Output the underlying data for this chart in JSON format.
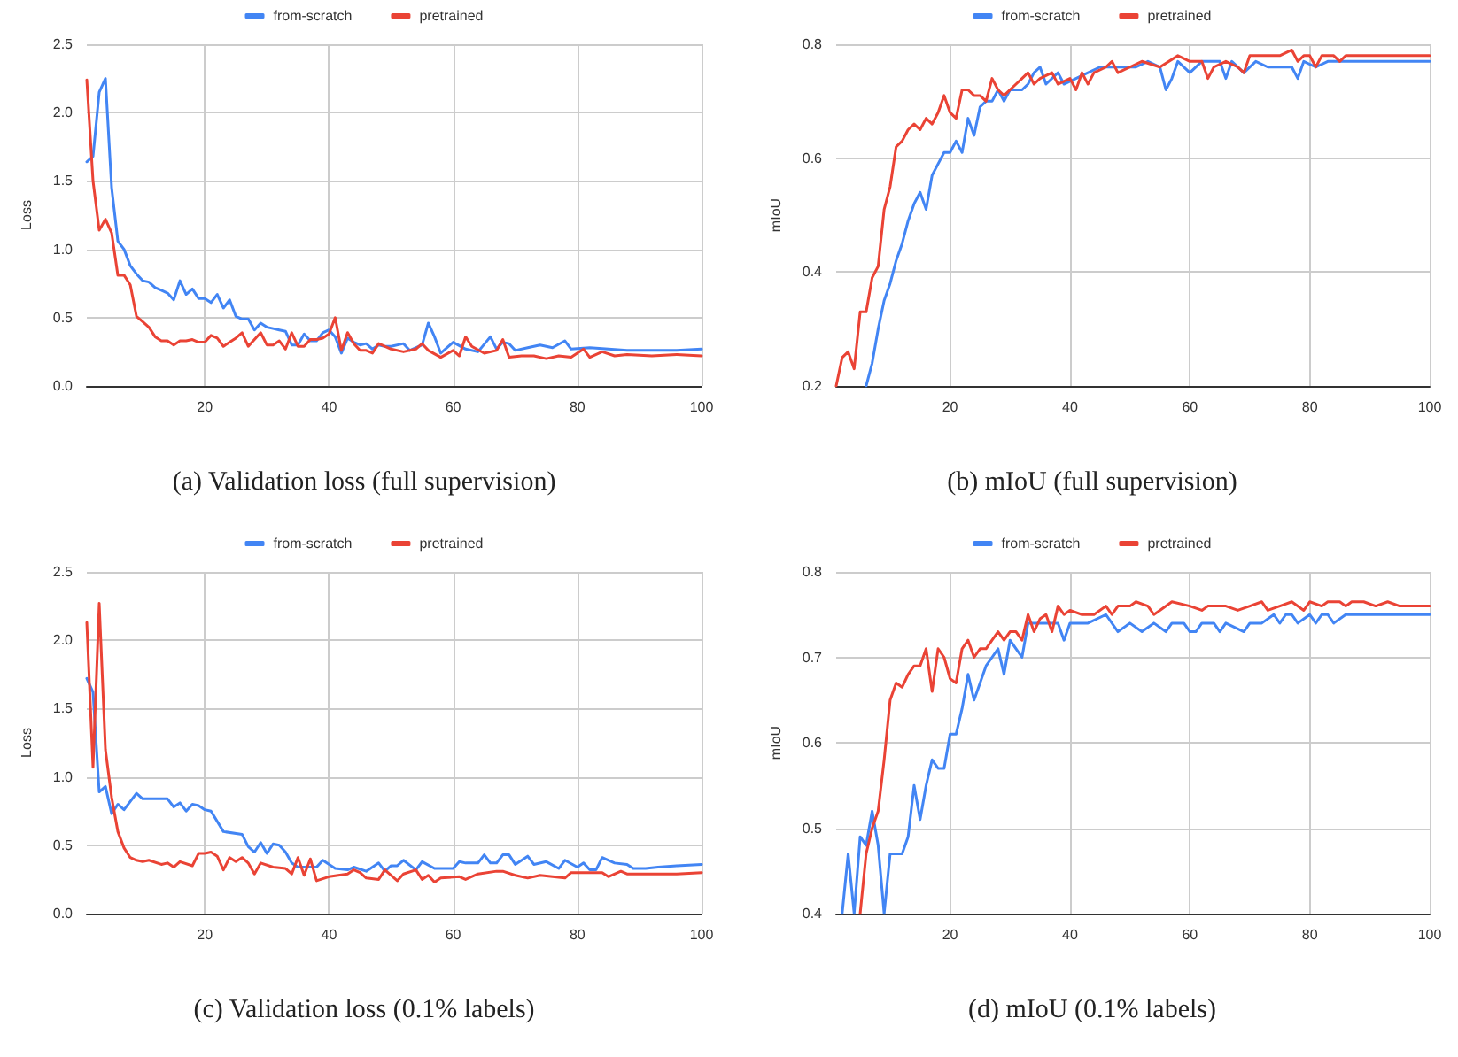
{
  "chart_data": [
    {
      "type": "line",
      "title": "(a) Validation loss (full supervision)",
      "ylabel": "Loss",
      "xlim": [
        1,
        100
      ],
      "xticks": [
        20,
        40,
        60,
        80,
        100
      ],
      "ylim": [
        0,
        2.5
      ],
      "yticks": [
        {
          "value": 0,
          "label": "0.0"
        },
        0.5,
        {
          "value": 1,
          "label": "1.0"
        },
        1.5,
        {
          "value": 2,
          "label": "2.0"
        },
        2.5
      ],
      "grid": true,
      "legend": "top",
      "marker": "none",
      "line_style": "solid",
      "series": [
        {
          "name": "from-scratch",
          "color": "#4285f4",
          "x": [
            1,
            2,
            3,
            4,
            5,
            6,
            7,
            8,
            9,
            10,
            11,
            12,
            13,
            14,
            15,
            16,
            17,
            18,
            19,
            20,
            21,
            22,
            23,
            24,
            25,
            26,
            27,
            28,
            29,
            30,
            31,
            32,
            33,
            34,
            35,
            36,
            37,
            38,
            39,
            40,
            41,
            42,
            43,
            44,
            45,
            46,
            47,
            48,
            49,
            50,
            52,
            53,
            55,
            56,
            57,
            58,
            60,
            62,
            64,
            66,
            67,
            68,
            69,
            70,
            72,
            74,
            76,
            78,
            79,
            82,
            85,
            88,
            92,
            96,
            100
          ],
          "values": [
            1.64,
            1.68,
            2.15,
            2.25,
            1.45,
            1.06,
            1.0,
            0.88,
            0.82,
            0.77,
            0.76,
            0.72,
            0.7,
            0.68,
            0.63,
            0.77,
            0.67,
            0.71,
            0.64,
            0.64,
            0.61,
            0.67,
            0.57,
            0.63,
            0.51,
            0.49,
            0.49,
            0.41,
            0.46,
            0.43,
            0.42,
            0.41,
            0.4,
            0.3,
            0.3,
            0.38,
            0.33,
            0.33,
            0.39,
            0.41,
            0.36,
            0.24,
            0.35,
            0.32,
            0.3,
            0.31,
            0.27,
            0.3,
            0.29,
            0.29,
            0.31,
            0.26,
            0.3,
            0.46,
            0.36,
            0.24,
            0.32,
            0.27,
            0.25,
            0.36,
            0.27,
            0.32,
            0.31,
            0.26,
            0.28,
            0.3,
            0.28,
            0.33,
            0.27,
            0.28,
            0.27,
            0.26,
            0.26,
            0.26,
            0.27
          ]
        },
        {
          "name": "pretrained",
          "color": "#ea4335",
          "x": [
            1,
            2,
            3,
            4,
            5,
            6,
            7,
            8,
            9,
            10,
            11,
            12,
            13,
            14,
            15,
            16,
            17,
            18,
            19,
            20,
            21,
            22,
            23,
            24,
            25,
            26,
            27,
            28,
            29,
            30,
            31,
            32,
            33,
            34,
            35,
            36,
            37,
            38,
            39,
            40,
            41,
            42,
            43,
            44,
            45,
            46,
            47,
            48,
            50,
            52,
            54,
            55,
            56,
            58,
            60,
            61,
            62,
            63,
            65,
            67,
            68,
            69,
            71,
            73,
            75,
            77,
            79,
            81,
            82,
            84,
            86,
            88,
            92,
            96,
            100
          ],
          "values": [
            2.24,
            1.5,
            1.14,
            1.22,
            1.12,
            0.81,
            0.81,
            0.74,
            0.51,
            0.47,
            0.43,
            0.36,
            0.33,
            0.33,
            0.3,
            0.33,
            0.33,
            0.34,
            0.32,
            0.32,
            0.37,
            0.35,
            0.29,
            0.32,
            0.35,
            0.39,
            0.29,
            0.34,
            0.39,
            0.3,
            0.3,
            0.33,
            0.27,
            0.39,
            0.29,
            0.29,
            0.34,
            0.34,
            0.35,
            0.38,
            0.5,
            0.26,
            0.39,
            0.31,
            0.26,
            0.26,
            0.24,
            0.31,
            0.27,
            0.25,
            0.27,
            0.31,
            0.26,
            0.21,
            0.26,
            0.22,
            0.36,
            0.29,
            0.24,
            0.26,
            0.34,
            0.21,
            0.22,
            0.22,
            0.2,
            0.22,
            0.21,
            0.27,
            0.21,
            0.25,
            0.22,
            0.23,
            0.22,
            0.23,
            0.22
          ]
        }
      ]
    },
    {
      "type": "line",
      "title": "(b) mIoU (full supervision)",
      "ylabel": "mIoU",
      "xlim": [
        1,
        100
      ],
      "xticks": [
        20,
        40,
        60,
        80,
        100
      ],
      "ylim": [
        0.2,
        0.8
      ],
      "yticks": [
        0.2,
        0.4,
        0.6,
        0.8
      ],
      "grid": true,
      "legend": "top",
      "marker": "none",
      "line_style": "solid",
      "series": [
        {
          "name": "from-scratch",
          "color": "#4285f4",
          "x": [
            6,
            7,
            8,
            9,
            10,
            11,
            12,
            13,
            14,
            15,
            16,
            17,
            18,
            19,
            20,
            21,
            22,
            23,
            24,
            25,
            26,
            27,
            28,
            29,
            30,
            32,
            33,
            34,
            35,
            36,
            38,
            39,
            41,
            43,
            45,
            47,
            49,
            51,
            53,
            55,
            56,
            57,
            58,
            60,
            62,
            63,
            65,
            66,
            67,
            69,
            71,
            73,
            75,
            77,
            78,
            79,
            81,
            83,
            86,
            90,
            95,
            100
          ],
          "values": [
            0.2,
            0.24,
            0.3,
            0.35,
            0.38,
            0.42,
            0.45,
            0.49,
            0.52,
            0.54,
            0.51,
            0.57,
            0.59,
            0.61,
            0.61,
            0.63,
            0.61,
            0.67,
            0.64,
            0.69,
            0.7,
            0.7,
            0.72,
            0.7,
            0.72,
            0.72,
            0.73,
            0.75,
            0.76,
            0.73,
            0.75,
            0.73,
            0.74,
            0.75,
            0.76,
            0.76,
            0.76,
            0.76,
            0.77,
            0.76,
            0.72,
            0.74,
            0.77,
            0.75,
            0.77,
            0.77,
            0.77,
            0.74,
            0.77,
            0.75,
            0.77,
            0.76,
            0.76,
            0.76,
            0.74,
            0.77,
            0.76,
            0.77,
            0.77,
            0.77,
            0.77,
            0.77
          ]
        },
        {
          "name": "pretrained",
          "color": "#ea4335",
          "x": [
            1,
            2,
            3,
            4,
            5,
            6,
            7,
            8,
            9,
            10,
            11,
            12,
            13,
            14,
            15,
            16,
            17,
            18,
            19,
            20,
            21,
            22,
            23,
            24,
            25,
            26,
            27,
            28,
            29,
            31,
            32,
            33,
            34,
            35,
            37,
            38,
            40,
            41,
            42,
            43,
            44,
            46,
            47,
            48,
            50,
            52,
            55,
            58,
            60,
            62,
            63,
            64,
            66,
            68,
            69,
            70,
            75,
            77,
            78,
            79,
            80,
            81,
            82,
            84,
            85,
            86,
            90,
            95,
            100
          ],
          "values": [
            0.2,
            0.25,
            0.26,
            0.23,
            0.33,
            0.33,
            0.39,
            0.41,
            0.51,
            0.55,
            0.62,
            0.63,
            0.65,
            0.66,
            0.65,
            0.67,
            0.66,
            0.68,
            0.71,
            0.68,
            0.67,
            0.72,
            0.72,
            0.71,
            0.71,
            0.7,
            0.74,
            0.72,
            0.71,
            0.73,
            0.74,
            0.75,
            0.73,
            0.74,
            0.75,
            0.73,
            0.74,
            0.72,
            0.75,
            0.73,
            0.75,
            0.76,
            0.77,
            0.75,
            0.76,
            0.77,
            0.76,
            0.78,
            0.77,
            0.77,
            0.74,
            0.76,
            0.77,
            0.76,
            0.75,
            0.78,
            0.78,
            0.79,
            0.77,
            0.78,
            0.78,
            0.76,
            0.78,
            0.78,
            0.77,
            0.78,
            0.78,
            0.78,
            0.78
          ]
        }
      ]
    },
    {
      "type": "line",
      "title": "(c) Validation loss (0.1% labels)",
      "ylabel": "Loss",
      "xlim": [
        1,
        100
      ],
      "xticks": [
        20,
        40,
        60,
        80,
        100
      ],
      "ylim": [
        0,
        2.5
      ],
      "yticks": [
        {
          "value": 0,
          "label": "0.0"
        },
        0.5,
        {
          "value": 1,
          "label": "1.0"
        },
        1.5,
        {
          "value": 2,
          "label": "2.0"
        },
        2.5
      ],
      "grid": true,
      "legend": "top",
      "marker": "none",
      "line_style": "solid",
      "series": [
        {
          "name": "from-scratch",
          "color": "#4285f4",
          "x": [
            1,
            2,
            3,
            4,
            5,
            6,
            7,
            8,
            9,
            10,
            14,
            15,
            16,
            17,
            18,
            19,
            20,
            21,
            23,
            26,
            27,
            28,
            29,
            30,
            31,
            32,
            33,
            34,
            35,
            38,
            39,
            41,
            43,
            44,
            46,
            48,
            49,
            50,
            51,
            52,
            54,
            55,
            57,
            60,
            61,
            62,
            64,
            65,
            66,
            67,
            68,
            69,
            70,
            72,
            73,
            75,
            77,
            78,
            80,
            81,
            82,
            83,
            84,
            86,
            88,
            89,
            91,
            93,
            96,
            100
          ],
          "values": [
            1.72,
            1.62,
            0.89,
            0.93,
            0.73,
            0.8,
            0.76,
            0.82,
            0.88,
            0.84,
            0.84,
            0.78,
            0.81,
            0.75,
            0.8,
            0.79,
            0.76,
            0.75,
            0.6,
            0.58,
            0.49,
            0.45,
            0.52,
            0.44,
            0.51,
            0.5,
            0.45,
            0.37,
            0.34,
            0.34,
            0.39,
            0.33,
            0.32,
            0.34,
            0.31,
            0.37,
            0.31,
            0.35,
            0.35,
            0.39,
            0.32,
            0.38,
            0.33,
            0.33,
            0.38,
            0.37,
            0.37,
            0.43,
            0.37,
            0.37,
            0.43,
            0.43,
            0.36,
            0.42,
            0.36,
            0.38,
            0.33,
            0.39,
            0.34,
            0.37,
            0.32,
            0.32,
            0.41,
            0.37,
            0.36,
            0.33,
            0.33,
            0.34,
            0.35,
            0.36
          ]
        },
        {
          "name": "pretrained",
          "color": "#ea4335",
          "x": [
            1,
            2,
            3,
            4,
            5,
            6,
            7,
            8,
            9,
            10,
            11,
            13,
            14,
            15,
            16,
            18,
            19,
            20,
            21,
            22,
            23,
            24,
            25,
            26,
            27,
            28,
            29,
            31,
            33,
            34,
            35,
            36,
            37,
            38,
            40,
            43,
            44,
            45,
            46,
            48,
            49,
            51,
            52,
            54,
            55,
            56,
            57,
            58,
            61,
            62,
            64,
            67,
            68,
            70,
            72,
            74,
            76,
            78,
            79,
            81,
            84,
            85,
            87,
            88,
            92,
            96,
            100
          ],
          "values": [
            2.13,
            1.07,
            2.27,
            1.2,
            0.85,
            0.6,
            0.48,
            0.41,
            0.39,
            0.38,
            0.39,
            0.36,
            0.37,
            0.34,
            0.38,
            0.35,
            0.44,
            0.44,
            0.45,
            0.42,
            0.32,
            0.41,
            0.38,
            0.41,
            0.37,
            0.29,
            0.37,
            0.34,
            0.33,
            0.29,
            0.41,
            0.28,
            0.4,
            0.24,
            0.27,
            0.29,
            0.32,
            0.3,
            0.26,
            0.25,
            0.32,
            0.24,
            0.29,
            0.32,
            0.25,
            0.28,
            0.23,
            0.26,
            0.27,
            0.25,
            0.29,
            0.31,
            0.31,
            0.28,
            0.26,
            0.28,
            0.27,
            0.26,
            0.3,
            0.3,
            0.3,
            0.27,
            0.31,
            0.29,
            0.29,
            0.29,
            0.3
          ]
        }
      ]
    },
    {
      "type": "line",
      "title": "(d) mIoU (0.1% labels)",
      "ylabel": "mIoU",
      "xlim": [
        1,
        100
      ],
      "xticks": [
        20,
        40,
        60,
        80,
        100
      ],
      "ylim": [
        0.4,
        0.8
      ],
      "yticks": [
        0.4,
        0.5,
        0.6,
        0.7,
        0.8
      ],
      "grid": true,
      "legend": "top",
      "marker": "none",
      "line_style": "solid",
      "series": [
        {
          "name": "from-scratch",
          "color": "#4285f4",
          "x": [
            2,
            3,
            4,
            5,
            6,
            7,
            8,
            9,
            10,
            11,
            12,
            13,
            14,
            15,
            16,
            17,
            18,
            19,
            20,
            21,
            22,
            23,
            24,
            25,
            26,
            27,
            28,
            29,
            30,
            31,
            32,
            33,
            34,
            36,
            38,
            39,
            40,
            43,
            46,
            48,
            50,
            52,
            54,
            56,
            57,
            59,
            60,
            61,
            62,
            64,
            65,
            66,
            69,
            70,
            72,
            74,
            75,
            76,
            77,
            78,
            80,
            81,
            82,
            83,
            84,
            86,
            88,
            89,
            95,
            100
          ],
          "values": [
            0.4,
            0.47,
            0.4,
            0.49,
            0.48,
            0.52,
            0.48,
            0.4,
            0.47,
            0.47,
            0.47,
            0.49,
            0.55,
            0.51,
            0.55,
            0.58,
            0.57,
            0.57,
            0.61,
            0.61,
            0.64,
            0.68,
            0.65,
            0.67,
            0.69,
            0.7,
            0.71,
            0.68,
            0.72,
            0.71,
            0.7,
            0.74,
            0.74,
            0.74,
            0.74,
            0.72,
            0.74,
            0.74,
            0.75,
            0.73,
            0.74,
            0.73,
            0.74,
            0.73,
            0.74,
            0.74,
            0.73,
            0.73,
            0.74,
            0.74,
            0.73,
            0.74,
            0.73,
            0.74,
            0.74,
            0.75,
            0.74,
            0.75,
            0.75,
            0.74,
            0.75,
            0.74,
            0.75,
            0.75,
            0.74,
            0.75,
            0.75,
            0.75,
            0.75,
            0.75
          ]
        },
        {
          "name": "pretrained",
          "color": "#ea4335",
          "x": [
            5,
            6,
            7,
            8,
            9,
            10,
            11,
            12,
            13,
            14,
            15,
            16,
            17,
            18,
            19,
            20,
            21,
            22,
            23,
            24,
            25,
            26,
            27,
            28,
            29,
            30,
            31,
            32,
            33,
            34,
            35,
            36,
            37,
            38,
            39,
            40,
            42,
            44,
            46,
            47,
            48,
            50,
            51,
            53,
            54,
            55,
            57,
            60,
            62,
            63,
            66,
            68,
            70,
            72,
            73,
            75,
            77,
            79,
            80,
            82,
            83,
            85,
            86,
            87,
            89,
            91,
            93,
            95,
            100
          ],
          "values": [
            0.4,
            0.47,
            0.5,
            0.52,
            0.58,
            0.65,
            0.67,
            0.665,
            0.68,
            0.69,
            0.69,
            0.71,
            0.66,
            0.71,
            0.7,
            0.675,
            0.67,
            0.71,
            0.72,
            0.7,
            0.71,
            0.71,
            0.72,
            0.73,
            0.72,
            0.73,
            0.73,
            0.72,
            0.75,
            0.73,
            0.745,
            0.75,
            0.73,
            0.76,
            0.75,
            0.755,
            0.75,
            0.75,
            0.76,
            0.75,
            0.76,
            0.76,
            0.765,
            0.76,
            0.75,
            0.755,
            0.765,
            0.76,
            0.755,
            0.76,
            0.76,
            0.755,
            0.76,
            0.765,
            0.755,
            0.76,
            0.765,
            0.755,
            0.765,
            0.76,
            0.765,
            0.765,
            0.76,
            0.765,
            0.765,
            0.76,
            0.765,
            0.76,
            0.76
          ]
        }
      ]
    }
  ]
}
